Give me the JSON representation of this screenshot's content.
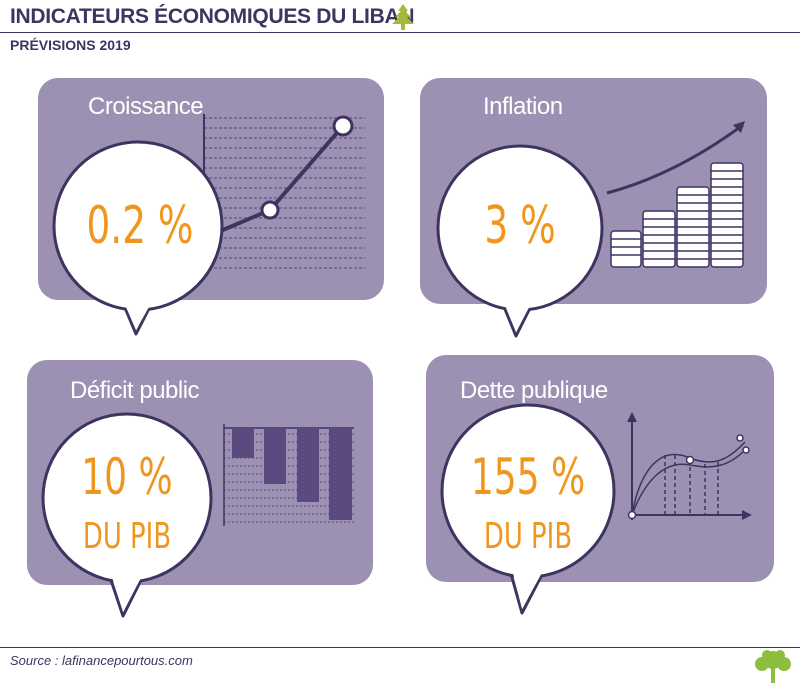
{
  "header": {
    "title": "INDICATEURS ÉCONOMIQUES DU LIBAN",
    "subtitle": "PRÉVISIONS 2019"
  },
  "footer": {
    "source": "Source : lafinancepourtous.com"
  },
  "colors": {
    "card_bg": "#9d91b3",
    "dark_purple": "#3d3460",
    "bar_purple": "#5a4a7f",
    "value_orange": "#f0961e",
    "logo_green": "#8cbf3f"
  },
  "icons": [
    "cedar-icon",
    "coins-icon",
    "tree-logo-icon"
  ],
  "chart_data": [
    {
      "type": "table",
      "label": "Croissance",
      "value": "0.2 %",
      "amount": 0.2,
      "unit": "%"
    },
    {
      "type": "table",
      "label": "Inflation",
      "value": "3 %",
      "amount": 3,
      "unit": "%"
    },
    {
      "type": "table",
      "label": "Déficit public",
      "value": "10 %",
      "value_line2": "DU PIB",
      "amount": 10,
      "unit": "% du PIB"
    },
    {
      "type": "table",
      "label": "Dette publique",
      "value": "155 %",
      "value_line2": "DU PIB",
      "amount": 155,
      "unit": "% du PIB"
    }
  ]
}
